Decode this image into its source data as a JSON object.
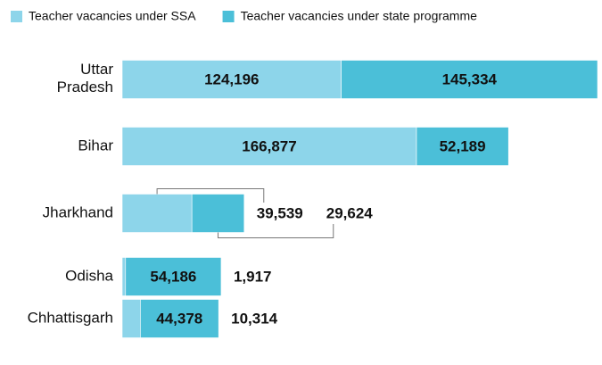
{
  "chart_data": {
    "type": "bar",
    "orientation": "horizontal",
    "stacked": true,
    "categories": [
      "Uttar Pradesh",
      "Bihar",
      "Jharkhand",
      "Odisha",
      "Chhattisgarh"
    ],
    "series": [
      {
        "name": "Teacher vacancies under SSA",
        "color": "#8dd5ea",
        "values": [
          124196,
          166877,
          39539,
          1917,
          10314
        ],
        "value_labels": [
          "124,196",
          "166,877",
          "39,539",
          "1,917",
          "10,314"
        ]
      },
      {
        "name": "Teacher vacancies under state programme",
        "color": "#4bbfd8",
        "values": [
          145334,
          52189,
          29624,
          54186,
          44378
        ],
        "value_labels": [
          "145,334",
          "52,189",
          "29,624",
          "54,186",
          "44,378"
        ]
      }
    ]
  }
}
